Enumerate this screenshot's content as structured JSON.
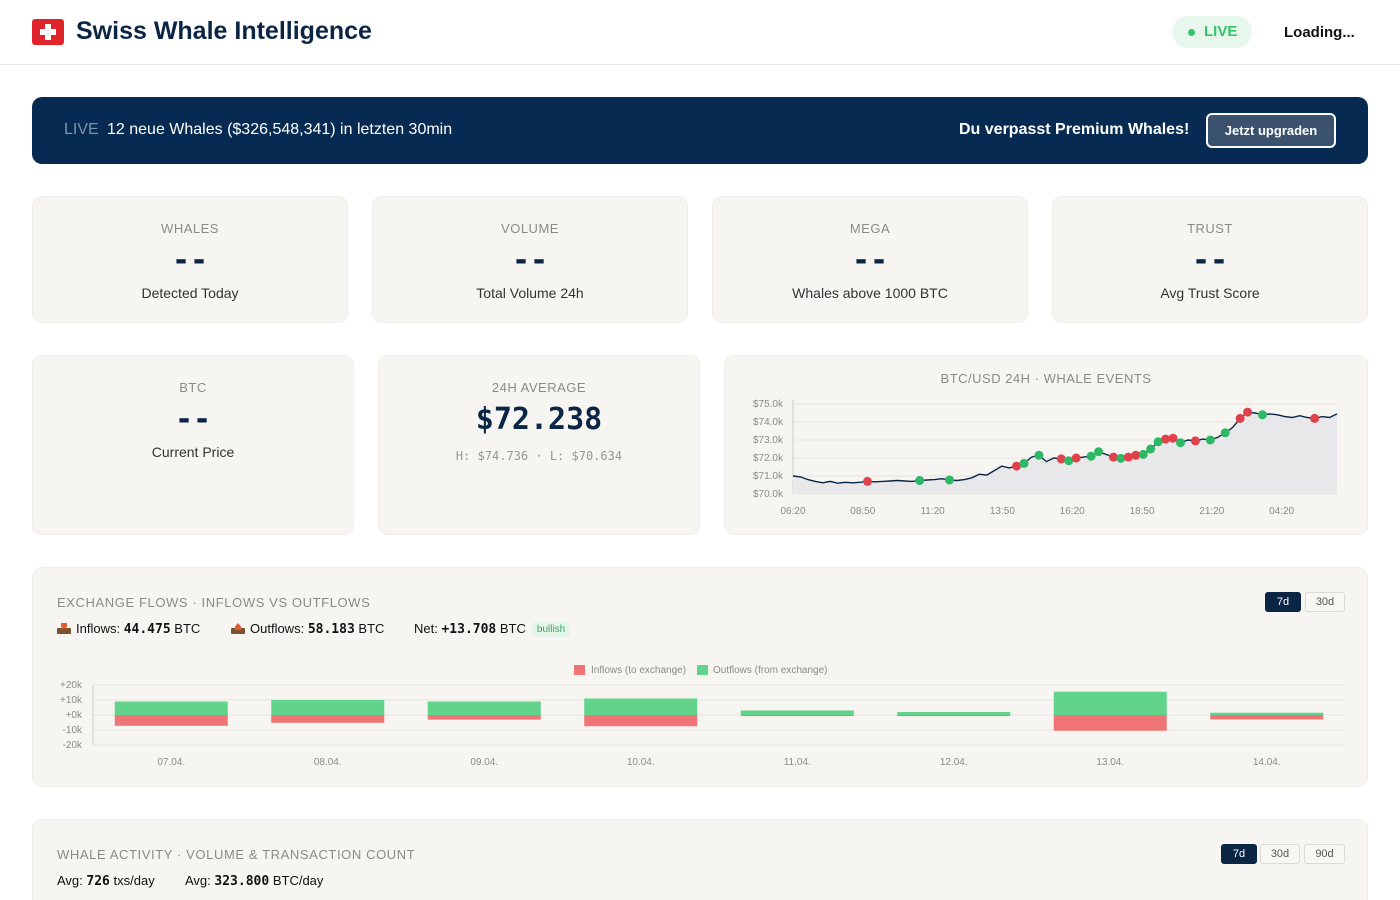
{
  "header": {
    "title": "Swiss Whale Intelligence",
    "live_label": "LIVE",
    "loading": "Loading..."
  },
  "banner": {
    "live_label": "LIVE",
    "message": "12 neue Whales ($326,548,341) in letzten 30min",
    "premium_text": "Du verpasst Premium Whales!",
    "upgrade_button": "Jetzt upgraden"
  },
  "stats": [
    {
      "label": "WHALES",
      "value": "--",
      "sub": "Detected Today"
    },
    {
      "label": "VOLUME",
      "value": "--",
      "sub": "Total Volume 24h"
    },
    {
      "label": "MEGA",
      "value": "--",
      "sub": "Whales above 1000 BTC"
    },
    {
      "label": "TRUST",
      "value": "--",
      "sub": "Avg Trust Score"
    }
  ],
  "btc_card": {
    "label": "BTC",
    "value": "--",
    "sub": "Current Price"
  },
  "avg_card": {
    "label": "24H AVERAGE",
    "value": "$72.238",
    "sub": "H: $74.736 · L: $70.634"
  },
  "colors": {
    "navy": "#0b2545",
    "inflow": "#ee7475",
    "outflow": "#61d38b",
    "sell_event": "#e0424a",
    "buy_event": "#2db866",
    "price_line": "#0b2545"
  },
  "chart_data": [
    {
      "type": "line",
      "title": "BTC/USD 24H · WHALE EVENTS",
      "x_ticks": [
        "06:20",
        "08:50",
        "11:20",
        "13:50",
        "16:20",
        "18:50",
        "21:20",
        "04:20"
      ],
      "y_ticks": [
        "$70.0k",
        "$71.0k",
        "$72.0k",
        "$73.0k",
        "$74.0k",
        "$75.0k"
      ],
      "ylim": [
        70000,
        75000
      ],
      "grid": true,
      "price_series": [
        71000,
        70950,
        70800,
        70700,
        70620,
        70700,
        70600,
        70650,
        70620,
        70650,
        70700,
        70680,
        70700,
        70720,
        70750,
        70720,
        70700,
        70750,
        70780,
        70800,
        70850,
        70780,
        70750,
        70800,
        70900,
        71100,
        71050,
        71300,
        71550,
        71450,
        71550,
        71700,
        72050,
        72150,
        71800,
        72000,
        71950,
        71850,
        72000,
        72050,
        72100,
        72350,
        72200,
        72050,
        71980,
        72050,
        72150,
        72200,
        72500,
        72900,
        73050,
        73100,
        72850,
        73000,
        72950,
        73050,
        73000,
        73150,
        73400,
        73700,
        74200,
        74550,
        74500,
        74400,
        74450,
        74400,
        74300,
        74250,
        74350,
        74250,
        74200,
        74300,
        74250,
        74450
      ],
      "events": [
        {
          "i": 10,
          "kind": "sell"
        },
        {
          "i": 17,
          "kind": "buy"
        },
        {
          "i": 21,
          "kind": "buy"
        },
        {
          "i": 30,
          "kind": "sell"
        },
        {
          "i": 31,
          "kind": "buy"
        },
        {
          "i": 33,
          "kind": "buy"
        },
        {
          "i": 36,
          "kind": "sell"
        },
        {
          "i": 37,
          "kind": "buy"
        },
        {
          "i": 38,
          "kind": "sell"
        },
        {
          "i": 40,
          "kind": "buy"
        },
        {
          "i": 41,
          "kind": "buy"
        },
        {
          "i": 43,
          "kind": "sell"
        },
        {
          "i": 44,
          "kind": "buy"
        },
        {
          "i": 45,
          "kind": "sell"
        },
        {
          "i": 46,
          "kind": "sell"
        },
        {
          "i": 47,
          "kind": "buy"
        },
        {
          "i": 48,
          "kind": "buy"
        },
        {
          "i": 49,
          "kind": "buy"
        },
        {
          "i": 50,
          "kind": "sell"
        },
        {
          "i": 51,
          "kind": "sell"
        },
        {
          "i": 52,
          "kind": "buy"
        },
        {
          "i": 54,
          "kind": "sell"
        },
        {
          "i": 56,
          "kind": "buy"
        },
        {
          "i": 58,
          "kind": "buy"
        },
        {
          "i": 60,
          "kind": "sell"
        },
        {
          "i": 61,
          "kind": "sell"
        },
        {
          "i": 63,
          "kind": "buy"
        },
        {
          "i": 70,
          "kind": "sell"
        }
      ]
    },
    {
      "type": "bar",
      "title": "EXCHANGE FLOWS · INFLOWS VS OUTFLOWS",
      "categories": [
        "07.04.",
        "08.04.",
        "09.04.",
        "10.04.",
        "11.04.",
        "12.04.",
        "13.04.",
        "14.04."
      ],
      "series": [
        {
          "name": "Inflows (to exchange)",
          "values": [
            -7200,
            -5200,
            -3100,
            -7500,
            -700,
            -700,
            -10500,
            -3000
          ]
        },
        {
          "name": "Outflows (from exchange)",
          "values": [
            9000,
            10000,
            9000,
            11000,
            3000,
            2000,
            15500,
            1500
          ]
        }
      ],
      "y_ticks": [
        "+20k",
        "+10k",
        "+0k",
        "-10k",
        "-20k"
      ],
      "ylim": [
        -20000,
        20000
      ],
      "legend": "top-center",
      "grid": true
    }
  ],
  "flows": {
    "title": "EXCHANGE FLOWS · INFLOWS VS OUTFLOWS",
    "ranges": [
      "7d",
      "30d"
    ],
    "inflows_label": "Inflows:",
    "inflows_value": "44.475",
    "outflows_label": "Outflows:",
    "outflows_value": "58.183",
    "net_label": "Net:",
    "net_value": "+13.708",
    "unit": "BTC",
    "badge": "bullish",
    "legend_in": "Inflows (to exchange)",
    "legend_out": "Outflows (from exchange)"
  },
  "activity": {
    "title": "WHALE ACTIVITY · VOLUME & TRANSACTION COUNT",
    "ranges": [
      "7d",
      "30d",
      "90d"
    ],
    "avg_label": "Avg:",
    "avg_txs": "726",
    "avg_txs_unit": "txs/day",
    "avg_btc": "323.800",
    "avg_btc_unit": "BTC/day"
  }
}
